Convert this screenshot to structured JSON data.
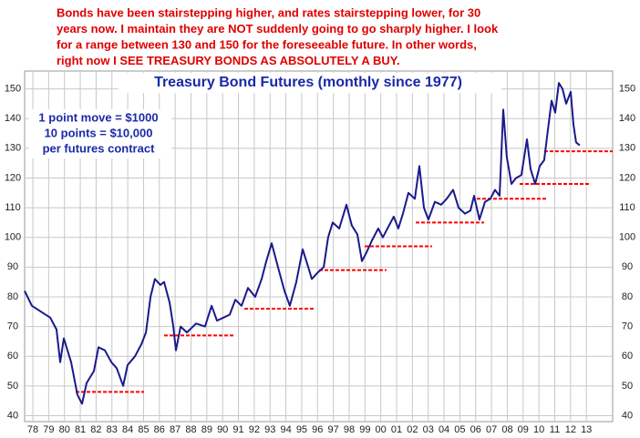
{
  "chart_data": {
    "type": "line",
    "annotation_lines": [
      "Bonds have been stairstepping higher, and rates stairstepping lower, for 30",
      "years now. I maintain they are NOT suddenly going to go sharply higher. I look",
      "for a range between 130 and 150 for the foreseeable future. In other words,",
      "right now I SEE TREASURY BONDS AS ABSOLUTELY A BUY."
    ],
    "title": "Treasury Bond Futures (monthly since 1977)",
    "note_lines": [
      "1 point move = $1000",
      "10 points = $10,000",
      "per futures contract"
    ],
    "xlim": [
      1977.98,
      2015.16
    ],
    "ylim": [
      38,
      156
    ],
    "xticks": [
      {
        "value": 1978.5,
        "label": "78"
      },
      {
        "value": 1979.5,
        "label": "79"
      },
      {
        "value": 1980.5,
        "label": "80"
      },
      {
        "value": 1981.5,
        "label": "81"
      },
      {
        "value": 1982.5,
        "label": "82"
      },
      {
        "value": 1983.5,
        "label": "83"
      },
      {
        "value": 1984.5,
        "label": "84"
      },
      {
        "value": 1985.5,
        "label": "85"
      },
      {
        "value": 1986.5,
        "label": "86"
      },
      {
        "value": 1987.5,
        "label": "87"
      },
      {
        "value": 1988.5,
        "label": "88"
      },
      {
        "value": 1989.5,
        "label": "89"
      },
      {
        "value": 1990.5,
        "label": "90"
      },
      {
        "value": 1991.5,
        "label": "91"
      },
      {
        "value": 1992.5,
        "label": "92"
      },
      {
        "value": 1993.5,
        "label": "93"
      },
      {
        "value": 1994.5,
        "label": "94"
      },
      {
        "value": 1995.5,
        "label": "95"
      },
      {
        "value": 1996.5,
        "label": "96"
      },
      {
        "value": 1997.5,
        "label": "97"
      },
      {
        "value": 1998.5,
        "label": "98"
      },
      {
        "value": 1999.5,
        "label": "99"
      },
      {
        "value": 2000.5,
        "label": "00"
      },
      {
        "value": 2001.5,
        "label": "01"
      },
      {
        "value": 2002.5,
        "label": "02"
      },
      {
        "value": 2003.5,
        "label": "03"
      },
      {
        "value": 2004.5,
        "label": "04"
      },
      {
        "value": 2005.5,
        "label": "05"
      },
      {
        "value": 2006.5,
        "label": "06"
      },
      {
        "value": 2007.5,
        "label": "07"
      },
      {
        "value": 2008.5,
        "label": "08"
      },
      {
        "value": 2009.5,
        "label": "09"
      },
      {
        "value": 2010.5,
        "label": "10"
      },
      {
        "value": 2011.5,
        "label": "11"
      },
      {
        "value": 2012.5,
        "label": "12"
      },
      {
        "value": 2013.5,
        "label": "13"
      }
    ],
    "yticks": [
      40,
      50,
      60,
      70,
      80,
      90,
      100,
      110,
      120,
      130,
      140,
      150
    ],
    "grid": true,
    "x": [
      1977.98,
      1978.44,
      1979.02,
      1979.6,
      1980.0,
      1980.23,
      1980.46,
      1980.92,
      1981.32,
      1981.61,
      1981.9,
      1982.36,
      1982.65,
      1983.05,
      1983.46,
      1983.8,
      1984.21,
      1984.49,
      1984.96,
      1985.36,
      1985.65,
      1985.94,
      1986.22,
      1986.57,
      1986.8,
      1987.15,
      1987.38,
      1987.55,
      1987.84,
      1988.24,
      1988.82,
      1989.39,
      1989.8,
      1990.14,
      1990.55,
      1990.95,
      1991.3,
      1991.7,
      1992.1,
      1992.56,
      1992.97,
      1993.26,
      1993.6,
      1994.0,
      1994.41,
      1994.75,
      1995.16,
      1995.56,
      1995.91,
      1996.14,
      1996.48,
      1996.89,
      1997.17,
      1997.46,
      1997.87,
      1998.33,
      1998.67,
      1999.02,
      1999.31,
      1999.6,
      1999.94,
      2000.34,
      2000.63,
      2000.92,
      2001.32,
      2001.61,
      2001.9,
      2002.25,
      2002.65,
      2002.94,
      2003.23,
      2003.51,
      2003.92,
      2004.32,
      2004.67,
      2005.07,
      2005.42,
      2005.82,
      2006.17,
      2006.4,
      2006.74,
      2007.09,
      2007.43,
      2007.72,
      2008.01,
      2008.24,
      2008.47,
      2008.76,
      2009.05,
      2009.39,
      2009.74,
      2009.97,
      2010.26,
      2010.55,
      2010.83,
      2011.06,
      2011.3,
      2011.53,
      2011.76,
      2011.99,
      2012.22,
      2012.51,
      2012.68,
      2012.85,
      2013.08
    ],
    "series": [
      {
        "color": "#1a1a8c",
        "values": [
          82,
          77,
          75,
          73,
          69,
          58,
          66,
          58,
          47,
          44,
          51,
          55,
          63,
          62,
          58,
          56,
          50,
          57,
          60,
          64,
          68,
          80,
          86,
          84,
          85,
          78,
          70,
          62,
          70,
          68,
          71,
          70,
          77,
          72,
          73,
          74,
          79,
          77,
          83,
          80,
          86,
          92,
          98,
          90,
          82,
          77,
          85,
          96,
          90,
          86,
          88,
          90,
          100,
          105,
          103,
          111,
          104,
          101,
          92,
          95,
          99,
          103,
          100,
          103,
          107,
          103,
          108,
          115,
          113,
          124,
          110,
          106,
          112,
          111,
          113,
          116,
          110,
          108,
          109,
          114,
          106,
          112,
          113,
          116,
          114,
          143,
          127,
          118,
          120,
          121,
          133,
          123,
          118,
          124,
          126,
          136,
          146,
          142,
          152,
          150,
          145,
          149,
          138,
          132,
          131
        ]
      }
    ],
    "support_color": "#ff0000",
    "support_levels": [
      {
        "x0": 1981.21,
        "x1": 1985.53,
        "y": 48
      },
      {
        "x0": 1986.8,
        "x1": 1991.24,
        "y": 67
      },
      {
        "x0": 1991.87,
        "x1": 1996.31,
        "y": 76
      },
      {
        "x0": 1996.6,
        "x1": 2000.86,
        "y": 89
      },
      {
        "x0": 1999.48,
        "x1": 2003.74,
        "y": 97
      },
      {
        "x0": 2002.71,
        "x1": 2007.03,
        "y": 105
      },
      {
        "x0": 2006.57,
        "x1": 2011.01,
        "y": 113
      },
      {
        "x0": 2009.28,
        "x1": 2013.72,
        "y": 118
      },
      {
        "x0": 2010.83,
        "x1": 2015.16,
        "y": 129
      }
    ]
  }
}
